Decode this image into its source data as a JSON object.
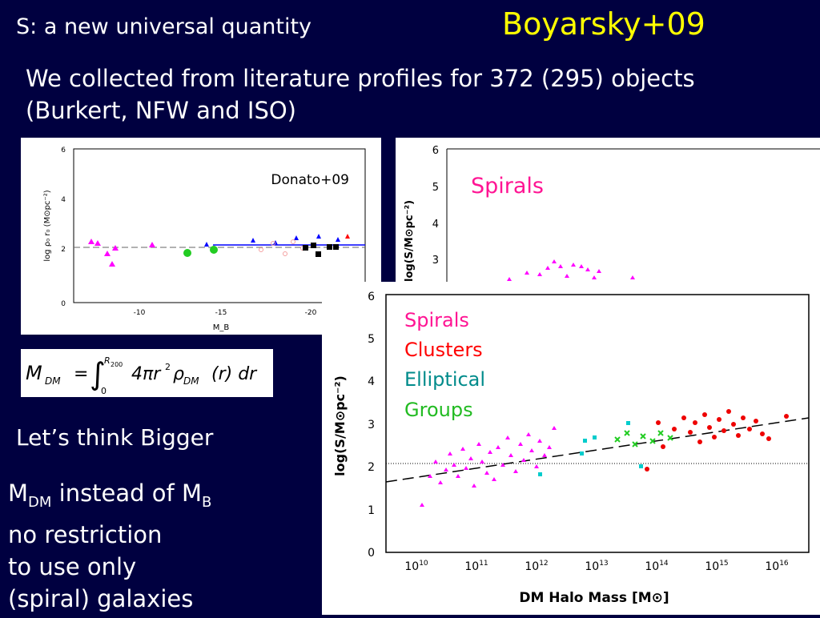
{
  "header": {
    "left_title": "S: a new universal quantity",
    "right_title": "Boyarsky+09"
  },
  "intro": {
    "line1": "We collected from literature profiles for 372 (295) objects",
    "line2": "(Burkert, NFW and ISO)"
  },
  "donato_plot": {
    "annotation": "Donato+09",
    "ylabel": "log ρ₀ r₀ (M⊙pc⁻²)",
    "xlabel": "M_B",
    "yticks": [
      "0",
      "2",
      "4",
      "6"
    ],
    "xticks": [
      "-10",
      "-15",
      "-20"
    ]
  },
  "spirals_plot": {
    "legend": "Spirals",
    "ylabel": "log(S/M⊙pc⁻²)",
    "yticks": [
      "6",
      "5",
      "4",
      "3"
    ]
  },
  "main_plot": {
    "legend": [
      "Spirals",
      "Clusters",
      "Elliptical",
      "Groups"
    ],
    "legend_colors": [
      "#ff00aa",
      "#ff0000",
      "#008b8b",
      "#22bb22"
    ],
    "ylabel": "log(S/M⊙pc⁻²)",
    "xlabel": "DM Halo Mass [M⊙]",
    "yticks": [
      "0",
      "1",
      "2",
      "3",
      "4",
      "5",
      "6"
    ],
    "xticks": [
      "10",
      "11",
      "12",
      "13",
      "14",
      "15",
      "16"
    ]
  },
  "formula": {
    "M": "M",
    "sub_dm": "DM",
    "eq": "=",
    "upper": "R",
    "upper_sub": "200",
    "lower": "0",
    "body": "4πr",
    "sq": "2",
    "rho": "ρ",
    "rho_sub": "DM",
    "tail": "(r) dr"
  },
  "think": "Let’s think Bigger",
  "notes": {
    "l1_a": "M",
    "l1_sub_a": "DM",
    "l1_b": " instead of M",
    "l1_sub_b": "B",
    "l2": "no restriction",
    "l3": "to use only",
    "l4": "(spiral) galaxies"
  }
}
